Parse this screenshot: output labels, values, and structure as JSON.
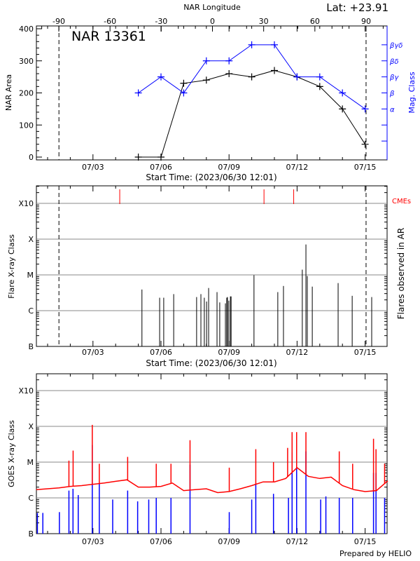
{
  "chart_data": [
    {
      "type": "line",
      "title": "NAR 13361",
      "corner_label": "Lat: +23.91",
      "top_axis_label": "NAR Longitude",
      "top_axis_ticks": [
        -90,
        -60,
        -30,
        0,
        30,
        60,
        90
      ],
      "xlabel": "Start Time: (2023/06/30 12:01)",
      "x_ticks": [
        "07/03",
        "07/06",
        "07/09",
        "07/12",
        "07/15"
      ],
      "ylabel": "NAR Area",
      "ylim": [
        0,
        400
      ],
      "y_ticks": [
        "0",
        "100",
        "200",
        "300",
        "400"
      ],
      "y2label": "Mag. Class",
      "y2_ticks": [
        "α",
        "β",
        "βγ",
        "βδ",
        "βγδ"
      ],
      "limb_lines": [
        "07/01 12:00",
        "07/15 01:00"
      ],
      "colors": {
        "area": "#000000",
        "mag_class": "#0000ff"
      },
      "series": [
        {
          "key": "area",
          "x": [
            "07/05 00:00",
            "07/06 00:00",
            "07/07 00:00",
            "07/08 00:00",
            "07/09 00:00",
            "07/10 00:00",
            "07/11 00:00",
            "07/12 00:00",
            "07/13 00:00",
            "07/14 00:00",
            "07/15 00:00"
          ],
          "values": [
            0,
            0,
            230,
            240,
            260,
            250,
            270,
            250,
            220,
            150,
            40
          ]
        },
        {
          "key": "mag_class",
          "x": [
            "07/05 00:00",
            "07/06 00:00",
            "07/07 00:00",
            "07/08 00:00",
            "07/09 00:00",
            "07/10 00:00",
            "07/11 00:00",
            "07/12 00:00",
            "07/13 00:00",
            "07/14 00:00",
            "07/15 00:00"
          ],
          "values": [
            "β",
            "βγ",
            "β",
            "βδ",
            "βδ",
            "βγδ",
            "βγδ",
            "βγ",
            "βγ",
            "β",
            "α"
          ]
        }
      ]
    },
    {
      "type": "bar",
      "xlabel": "Start Time: (2023/06/30 12:01)",
      "x_ticks": [
        "07/03",
        "07/06",
        "07/09",
        "07/12",
        "07/15"
      ],
      "ylabel": "Flare X-ray Class",
      "y2label": "Flares observed in AR",
      "y_ticks": [
        "B",
        "C",
        "M",
        "X",
        "X10"
      ],
      "grid": true,
      "cme_label": "CMEs",
      "colors": {
        "flares": "#000000",
        "cmes": "#ff0000",
        "grid": "#888888"
      },
      "limb_lines": [
        "07/01 12:00",
        "07/15 01:00"
      ],
      "cmes": [
        "07/04 04:20",
        "07/10 13:00",
        "07/11 20:25"
      ],
      "flares": [
        [
          "07/05 03:50",
          "C3.9"
        ],
        [
          "07/05 22:34",
          "C2.3"
        ],
        [
          "07/06 02:53",
          "C2.3"
        ],
        [
          "07/06 13:26",
          "C2.9"
        ],
        [
          "07/07 13:41",
          "C2.4"
        ],
        [
          "07/07 18:14",
          "C2.9"
        ],
        [
          "07/07 21:50",
          "C2.3"
        ],
        [
          "07/08 00:14",
          "C1.8"
        ],
        [
          "07/08 02:24",
          "C4.3"
        ],
        [
          "07/08 11:17",
          "C3.3"
        ],
        [
          "07/08 14:10",
          "C1.7"
        ],
        [
          "07/08 20:10",
          "C1.6"
        ],
        [
          "07/08 21:36",
          "C2.3"
        ],
        [
          "07/08 22:19",
          "C2.4"
        ],
        [
          "07/08 23:46",
          "C1.9"
        ],
        [
          "07/09 01:26",
          "C2.5"
        ],
        [
          "07/09 02:10",
          "C2.5"
        ],
        [
          "07/10 02:24",
          "C9.8"
        ],
        [
          "07/11 03:36",
          "C3.3"
        ],
        [
          "07/11 09:36",
          "C4.9"
        ],
        [
          "07/12 05:31",
          "M1.4"
        ],
        [
          "07/12 09:22",
          "M7.1"
        ],
        [
          "07/12 10:48",
          "C9.3"
        ],
        [
          "07/12 16:05",
          "C4.7"
        ],
        [
          "07/13 19:26",
          "C5.9"
        ],
        [
          "07/14 10:19",
          "C2.6"
        ],
        [
          "07/15 06:58",
          "C2.4"
        ]
      ]
    },
    {
      "type": "line",
      "ylabel": "GOES X-ray Class",
      "x_ticks": [
        "07/03",
        "07/06",
        "07/09",
        "07/12",
        "07/15"
      ],
      "y_ticks": [
        "B",
        "C",
        "M",
        "X",
        "X10"
      ],
      "grid": true,
      "colors": {
        "long_channel": "#ff0000",
        "short_channel": "#0000ff",
        "grid": "#888888"
      },
      "long_channel_background": [
        [
          "06/30 12:01",
          "C1.7"
        ],
        [
          "07/01 00:00",
          "C1.8"
        ],
        [
          "07/01 12:00",
          "C1.9"
        ],
        [
          "07/02 00:00",
          "C2.1"
        ],
        [
          "07/02 12:00",
          "C2.2"
        ],
        [
          "07/03 00:00",
          "C2.4"
        ],
        [
          "07/03 12:00",
          "C2.6"
        ],
        [
          "07/04 00:00",
          "C2.9"
        ],
        [
          "07/04 12:00",
          "C3.2"
        ],
        [
          "07/05 00:00",
          "C2.0"
        ],
        [
          "07/05 12:00",
          "C2.0"
        ],
        [
          "07/06 00:00",
          "C2.1"
        ],
        [
          "07/06 12:00",
          "C2.6"
        ],
        [
          "07/07 00:00",
          "C1.6"
        ],
        [
          "07/07 12:00",
          "C1.7"
        ],
        [
          "07/08 00:00",
          "C1.8"
        ],
        [
          "07/08 12:00",
          "C1.4"
        ],
        [
          "07/09 00:00",
          "C1.5"
        ],
        [
          "07/09 12:00",
          "C1.8"
        ],
        [
          "07/10 00:00",
          "C2.2"
        ],
        [
          "07/10 12:00",
          "C2.8"
        ],
        [
          "07/11 00:00",
          "C2.8"
        ],
        [
          "07/11 12:00",
          "C3.5"
        ],
        [
          "07/12 00:00",
          "C7.0"
        ],
        [
          "07/12 12:00",
          "C4.0"
        ],
        [
          "07/13 00:00",
          "C3.5"
        ],
        [
          "07/13 12:00",
          "C3.8"
        ],
        [
          "07/14 00:00",
          "C2.2"
        ],
        [
          "07/14 12:00",
          "C1.7"
        ],
        [
          "07/15 00:00",
          "C1.5"
        ],
        [
          "07/15 12:00",
          "C1.6"
        ],
        [
          "07/16 00:00",
          "C3.0"
        ]
      ],
      "long_channel_peaks": [
        [
          "07/01 22:34",
          "M1.1"
        ],
        [
          "07/02 03:00",
          "M2.1"
        ],
        [
          "07/02 23:17",
          "X1.1"
        ],
        [
          "07/03 06:43",
          "M0.9"
        ],
        [
          "07/04 12:43",
          "M1.4"
        ],
        [
          "07/05 18:58",
          "M0.9"
        ],
        [
          "07/06 10:34",
          "M0.9"
        ],
        [
          "07/07 06:43",
          "M4.1"
        ],
        [
          "07/09 00:14",
          "C7.0"
        ],
        [
          "07/10 04:19",
          "M2.3"
        ],
        [
          "07/10 23:02",
          "M1.0"
        ],
        [
          "07/11 14:00",
          "M2.5"
        ],
        [
          "07/11 18:43",
          "M6.9"
        ],
        [
          "07/11 23:31",
          "M6.9"
        ],
        [
          "07/12 09:22",
          "M6.9"
        ],
        [
          "07/13 20:38",
          "M2.0"
        ],
        [
          "07/14 10:48",
          "M0.9"
        ],
        [
          "07/15 08:53",
          "M4.5"
        ],
        [
          "07/15 11:31",
          "M2.3"
        ],
        [
          "07/15 20:38",
          "M0.9"
        ]
      ],
      "short_channel_peaks": [
        [
          "06/30 13:12",
          "B3.8"
        ],
        [
          "06/30 18:58",
          "B3.8"
        ],
        [
          "07/01 12:29",
          "B4.0"
        ],
        [
          "07/01 22:34",
          "C1.6"
        ],
        [
          "07/02 02:53",
          "C1.8"
        ],
        [
          "07/02 08:24",
          "C1.2"
        ],
        [
          "07/02 23:17",
          "M3.0"
        ],
        [
          "07/03 06:43",
          "C2.5"
        ],
        [
          "07/03 20:53",
          "B9.0"
        ],
        [
          "07/04 12:43",
          "C1.6"
        ],
        [
          "07/04 23:17",
          "B8.0"
        ],
        [
          "07/05 11:02",
          "B9.0"
        ],
        [
          "07/05 18:58",
          "C1.0"
        ],
        [
          "07/06 10:34",
          "C1.0"
        ],
        [
          "07/07 06:43",
          "C8.5"
        ],
        [
          "07/09 00:14",
          "B4.0"
        ],
        [
          "07/10 00:00",
          "B9.0"
        ],
        [
          "07/10 04:19",
          "C2.5"
        ],
        [
          "07/10 23:02",
          "C1.3"
        ],
        [
          "07/11 14:53",
          "C1.0"
        ],
        [
          "07/11 18:43",
          "M1.9"
        ],
        [
          "07/11 23:31",
          "M1.9"
        ],
        [
          "07/12 09:22",
          "M2.0"
        ],
        [
          "07/13 00:58",
          "B9.0"
        ],
        [
          "07/13 06:29",
          "C1.1"
        ],
        [
          "07/13 20:38",
          "C1.0"
        ],
        [
          "07/14 10:48",
          "C1.0"
        ],
        [
          "07/15 08:53",
          "C5.0"
        ],
        [
          "07/15 11:31",
          "C5.0"
        ],
        [
          "07/15 20:38",
          "C1.0"
        ]
      ],
      "credit": "Prepared by HELIO"
    }
  ]
}
